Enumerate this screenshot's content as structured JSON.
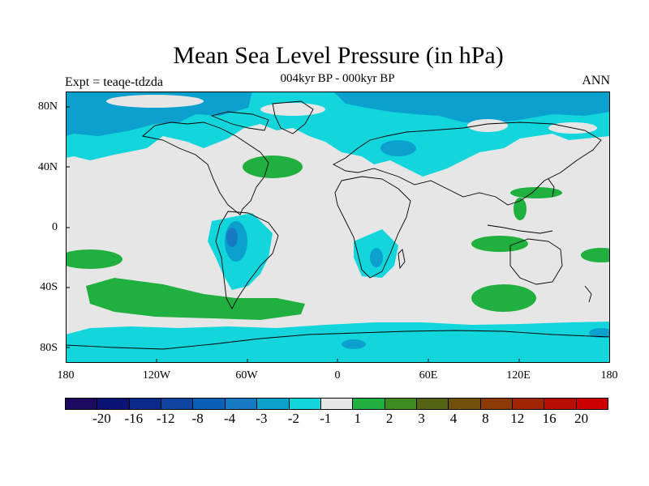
{
  "title": "Mean Sea Level Pressure (in hPa)",
  "subtitle": "004kyr BP - 000kyr BP",
  "experiment_label": "Expt = teaqe-tdzda",
  "season_label": "ANN",
  "map": {
    "ocean_color_note": "shaded by anomaly class",
    "lat_labels": [
      "80N",
      "40N",
      "0",
      "40S",
      "80S"
    ],
    "lon_labels": [
      "180",
      "120W",
      "60W",
      "0",
      "60E",
      "120E",
      "180"
    ]
  },
  "legend": {
    "colors": [
      "#1b0a60",
      "#0b1475",
      "#0a2a8a",
      "#0f44a1",
      "#0a5fb6",
      "#1679c2",
      "#0ca0cf",
      "#13d6dc",
      "#e6e6e6",
      "#20b040",
      "#3c8c22",
      "#546414",
      "#70500a",
      "#8c3a06",
      "#a02504",
      "#b80d02",
      "#cf0000"
    ],
    "labels": [
      "-20",
      "-16",
      "-12",
      "-8",
      "-4",
      "-3",
      "-2",
      "-1",
      "1",
      "2",
      "3",
      "4",
      "8",
      "12",
      "16",
      "20"
    ]
  },
  "colors": {
    "neutral": "#e6e6e6",
    "cyan": "#13d6dc",
    "blue": "#0ca0cf",
    "deep_blue": "#1679c2",
    "green": "#20b040"
  }
}
